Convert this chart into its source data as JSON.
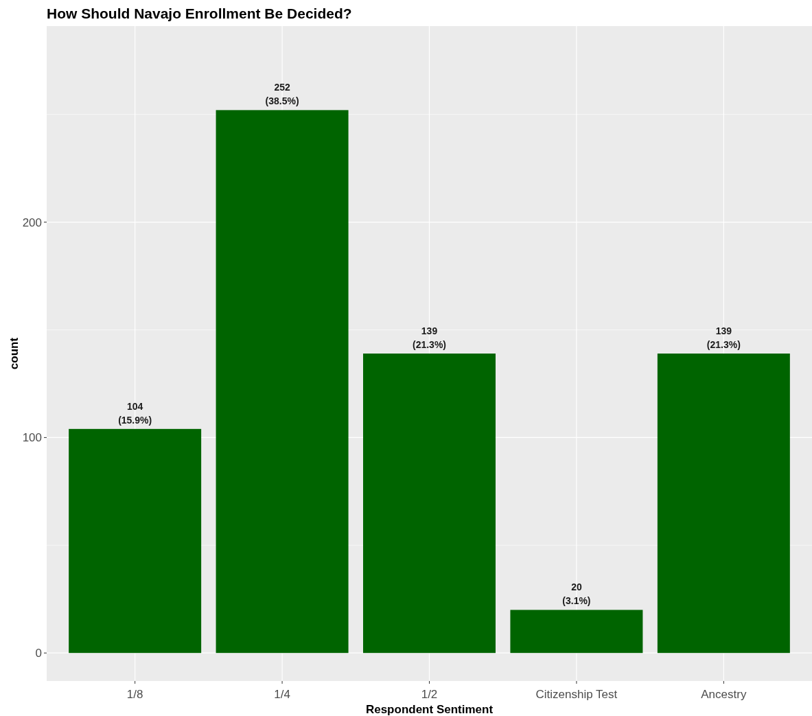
{
  "chart_data": {
    "type": "bar",
    "title": "How Should Navajo Enrollment Be Decided?",
    "xlabel": "Respondent Sentiment",
    "ylabel": "count",
    "categories": [
      "1/8",
      "1/4",
      "1/2",
      "Citizenship Test",
      "Ancestry"
    ],
    "values": [
      104,
      252,
      139,
      20,
      139
    ],
    "value_labels": [
      "104\n(15.9%)",
      "252\n(38.5%)",
      "139\n(21.3%)",
      "20\n(3.1%)",
      "139\n(21.3%)"
    ],
    "color": "#006400",
    "ylim": [
      -13,
      291
    ],
    "yticks": [
      0,
      {
        "value": 50,
        "label": null
      },
      100,
      {
        "value": 150,
        "label": null
      },
      200,
      {
        "value": 250,
        "label": null
      }
    ],
    "grid": true
  }
}
